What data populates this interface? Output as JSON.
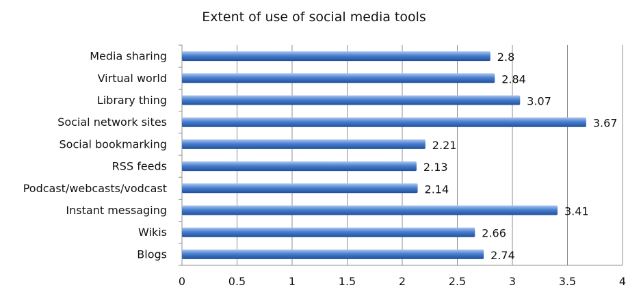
{
  "chart_data": {
    "type": "bar",
    "orientation": "horizontal",
    "title": "Extent of use of social media tools",
    "xlabel": "",
    "ylabel": "",
    "categories": [
      "Media sharing",
      "Virtual world",
      "Library thing",
      "Social network sites",
      "Social bookmarking",
      "RSS feeds",
      "Podcast/webcasts/vodcast",
      "Instant messaging",
      "Wikis",
      "Blogs"
    ],
    "values": [
      2.8,
      2.84,
      3.07,
      3.67,
      2.21,
      2.13,
      2.14,
      3.41,
      2.66,
      2.74
    ],
    "value_labels": [
      "2.8",
      "2.84",
      "3.07",
      "3.67",
      "2.21",
      "2.13",
      "2.14",
      "3.41",
      "2.66",
      "2.74"
    ],
    "xlim": [
      0,
      4
    ],
    "xticks": [
      "0",
      "0.5",
      "1",
      "1.5",
      "2",
      "2.5",
      "3",
      "3.5",
      "4"
    ],
    "grid": "vertical major gridlines",
    "legend": "none",
    "bar_color": "#4a7fcf",
    "bar_color_dark": "#1f4f9a",
    "bar_color_light": "#a9c6f0"
  }
}
